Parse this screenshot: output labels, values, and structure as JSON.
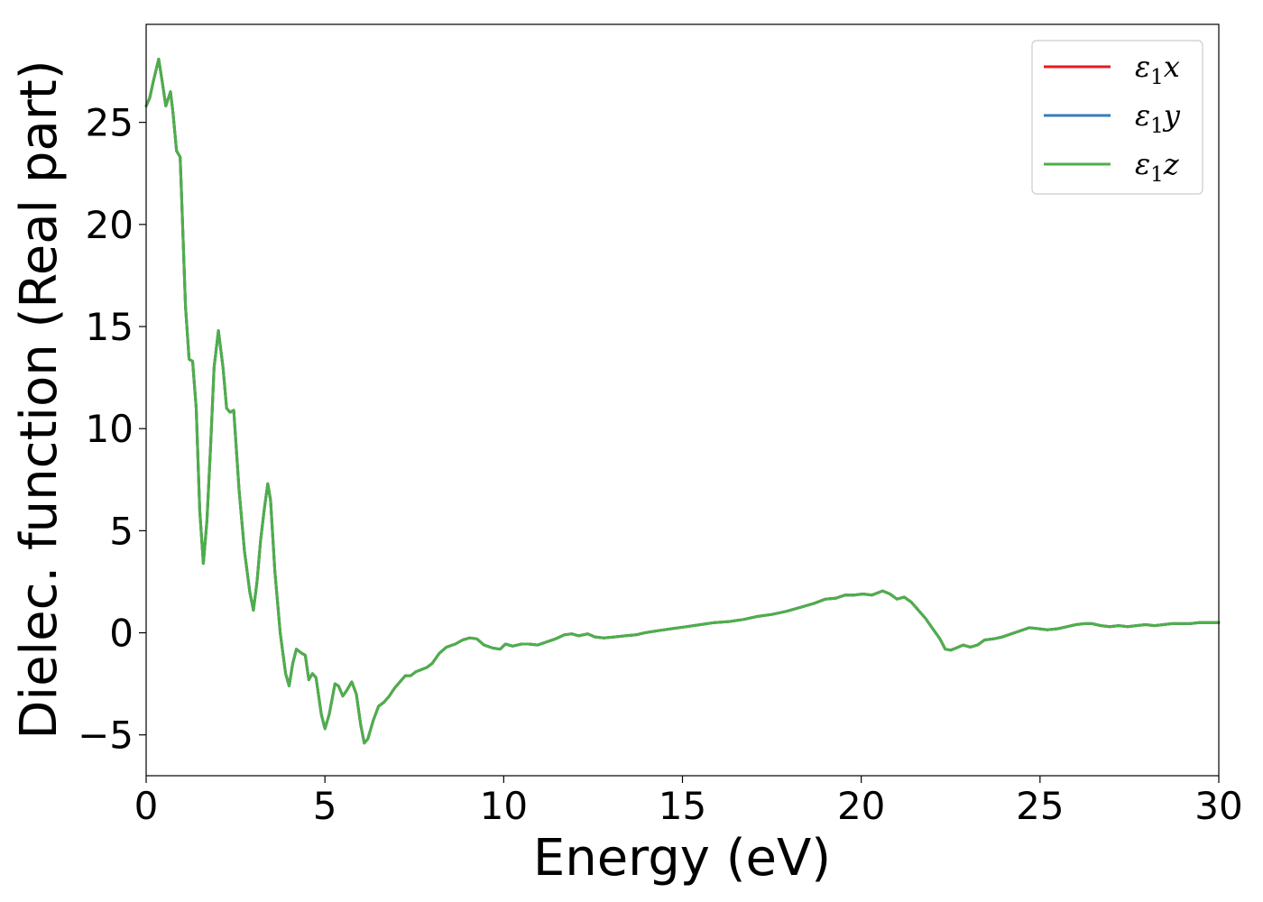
{
  "chart_data": {
    "type": "line",
    "xlabel": "Energy (eV)",
    "ylabel": "Dielec. function (Real part)",
    "xlim": [
      0,
      30
    ],
    "ylim": [
      -7,
      29.8
    ],
    "xticks": [
      0,
      5,
      10,
      15,
      20,
      25,
      30
    ],
    "yticks": [
      -5,
      0,
      5,
      10,
      15,
      20,
      25
    ],
    "xtick_labels": [
      "0",
      "5",
      "10",
      "15",
      "20",
      "25",
      "30"
    ],
    "ytick_labels": [
      "−5",
      "0",
      "5",
      "10",
      "15",
      "20",
      "25"
    ],
    "grid": false,
    "legend_position": "top-right",
    "series": [
      {
        "name": "ε₁x",
        "name_parts": {
          "symbol": "ε",
          "sub": "1",
          "comp": "x"
        },
        "color": "#e41a1c"
      },
      {
        "name": "ε₁y",
        "name_parts": {
          "symbol": "ε",
          "sub": "1",
          "comp": "y"
        },
        "color": "#377eb8"
      },
      {
        "name": "ε₁z",
        "name_parts": {
          "symbol": "ε",
          "sub": "1",
          "comp": "z"
        },
        "color": "#4daf4a"
      }
    ],
    "shared_points": [
      [
        0.0,
        25.8
      ],
      [
        0.1,
        26.2
      ],
      [
        0.2,
        27.0
      ],
      [
        0.35,
        28.1
      ],
      [
        0.45,
        27.0
      ],
      [
        0.55,
        25.8
      ],
      [
        0.68,
        26.5
      ],
      [
        0.75,
        25.5
      ],
      [
        0.85,
        23.6
      ],
      [
        0.95,
        23.3
      ],
      [
        1.0,
        21.0
      ],
      [
        1.1,
        16.0
      ],
      [
        1.2,
        13.4
      ],
      [
        1.3,
        13.3
      ],
      [
        1.4,
        11.0
      ],
      [
        1.5,
        6.0
      ],
      [
        1.6,
        3.4
      ],
      [
        1.7,
        5.5
      ],
      [
        1.8,
        9.0
      ],
      [
        1.9,
        13.0
      ],
      [
        2.02,
        14.8
      ],
      [
        2.15,
        13.0
      ],
      [
        2.25,
        11.0
      ],
      [
        2.35,
        10.8
      ],
      [
        2.45,
        10.9
      ],
      [
        2.6,
        7.0
      ],
      [
        2.75,
        4.0
      ],
      [
        2.9,
        2.0
      ],
      [
        3.0,
        1.1
      ],
      [
        3.1,
        2.5
      ],
      [
        3.2,
        4.5
      ],
      [
        3.3,
        6.0
      ],
      [
        3.4,
        7.3
      ],
      [
        3.48,
        6.5
      ],
      [
        3.6,
        3.0
      ],
      [
        3.75,
        0.0
      ],
      [
        3.9,
        -2.0
      ],
      [
        4.0,
        -2.6
      ],
      [
        4.1,
        -1.5
      ],
      [
        4.2,
        -0.8
      ],
      [
        4.35,
        -1.0
      ],
      [
        4.45,
        -1.1
      ],
      [
        4.55,
        -2.3
      ],
      [
        4.65,
        -2.0
      ],
      [
        4.75,
        -2.2
      ],
      [
        4.9,
        -4.0
      ],
      [
        5.0,
        -4.7
      ],
      [
        5.12,
        -4.0
      ],
      [
        5.28,
        -2.5
      ],
      [
        5.38,
        -2.6
      ],
      [
        5.5,
        -3.1
      ],
      [
        5.62,
        -2.8
      ],
      [
        5.75,
        -2.4
      ],
      [
        5.88,
        -3.0
      ],
      [
        6.0,
        -4.5
      ],
      [
        6.1,
        -5.4
      ],
      [
        6.2,
        -5.2
      ],
      [
        6.35,
        -4.3
      ],
      [
        6.5,
        -3.6
      ],
      [
        6.65,
        -3.4
      ],
      [
        6.8,
        -3.1
      ],
      [
        6.95,
        -2.7
      ],
      [
        7.1,
        -2.4
      ],
      [
        7.25,
        -2.1
      ],
      [
        7.4,
        -2.1
      ],
      [
        7.55,
        -1.9
      ],
      [
        7.7,
        -1.8
      ],
      [
        7.85,
        -1.7
      ],
      [
        8.0,
        -1.5
      ],
      [
        8.2,
        -1.0
      ],
      [
        8.4,
        -0.7
      ],
      [
        8.65,
        -0.55
      ],
      [
        8.85,
        -0.35
      ],
      [
        9.05,
        -0.25
      ],
      [
        9.25,
        -0.3
      ],
      [
        9.45,
        -0.6
      ],
      [
        9.7,
        -0.75
      ],
      [
        9.9,
        -0.8
      ],
      [
        10.05,
        -0.55
      ],
      [
        10.25,
        -0.65
      ],
      [
        10.5,
        -0.55
      ],
      [
        10.7,
        -0.55
      ],
      [
        10.95,
        -0.6
      ],
      [
        11.2,
        -0.45
      ],
      [
        11.45,
        -0.3
      ],
      [
        11.7,
        -0.1
      ],
      [
        11.9,
        -0.05
      ],
      [
        12.1,
        -0.15
      ],
      [
        12.35,
        -0.05
      ],
      [
        12.55,
        -0.2
      ],
      [
        12.8,
        -0.25
      ],
      [
        13.1,
        -0.2
      ],
      [
        13.4,
        -0.15
      ],
      [
        13.7,
        -0.1
      ],
      [
        13.95,
        0.0
      ],
      [
        14.3,
        0.1
      ],
      [
        14.7,
        0.2
      ],
      [
        15.1,
        0.3
      ],
      [
        15.5,
        0.4
      ],
      [
        15.9,
        0.5
      ],
      [
        16.3,
        0.55
      ],
      [
        16.7,
        0.65
      ],
      [
        17.1,
        0.8
      ],
      [
        17.5,
        0.9
      ],
      [
        17.9,
        1.05
      ],
      [
        18.3,
        1.25
      ],
      [
        18.7,
        1.45
      ],
      [
        19.0,
        1.65
      ],
      [
        19.3,
        1.7
      ],
      [
        19.55,
        1.85
      ],
      [
        19.8,
        1.85
      ],
      [
        20.05,
        1.9
      ],
      [
        20.3,
        1.85
      ],
      [
        20.6,
        2.05
      ],
      [
        20.8,
        1.9
      ],
      [
        21.0,
        1.65
      ],
      [
        21.2,
        1.75
      ],
      [
        21.4,
        1.5
      ],
      [
        21.6,
        1.1
      ],
      [
        21.8,
        0.7
      ],
      [
        22.0,
        0.2
      ],
      [
        22.2,
        -0.3
      ],
      [
        22.35,
        -0.8
      ],
      [
        22.5,
        -0.85
      ],
      [
        22.65,
        -0.75
      ],
      [
        22.85,
        -0.6
      ],
      [
        23.05,
        -0.7
      ],
      [
        23.25,
        -0.6
      ],
      [
        23.45,
        -0.35
      ],
      [
        23.7,
        -0.3
      ],
      [
        23.95,
        -0.2
      ],
      [
        24.2,
        -0.05
      ],
      [
        24.45,
        0.1
      ],
      [
        24.7,
        0.25
      ],
      [
        24.95,
        0.2
      ],
      [
        25.2,
        0.15
      ],
      [
        25.5,
        0.2
      ],
      [
        25.75,
        0.3
      ],
      [
        26.0,
        0.4
      ],
      [
        26.25,
        0.45
      ],
      [
        26.45,
        0.45
      ],
      [
        26.7,
        0.35
      ],
      [
        26.95,
        0.3
      ],
      [
        27.2,
        0.35
      ],
      [
        27.45,
        0.3
      ],
      [
        27.7,
        0.35
      ],
      [
        27.95,
        0.4
      ],
      [
        28.2,
        0.35
      ],
      [
        28.45,
        0.4
      ],
      [
        28.7,
        0.45
      ],
      [
        28.95,
        0.45
      ],
      [
        29.2,
        0.45
      ],
      [
        29.45,
        0.5
      ],
      [
        29.7,
        0.5
      ],
      [
        30.0,
        0.5
      ]
    ]
  }
}
